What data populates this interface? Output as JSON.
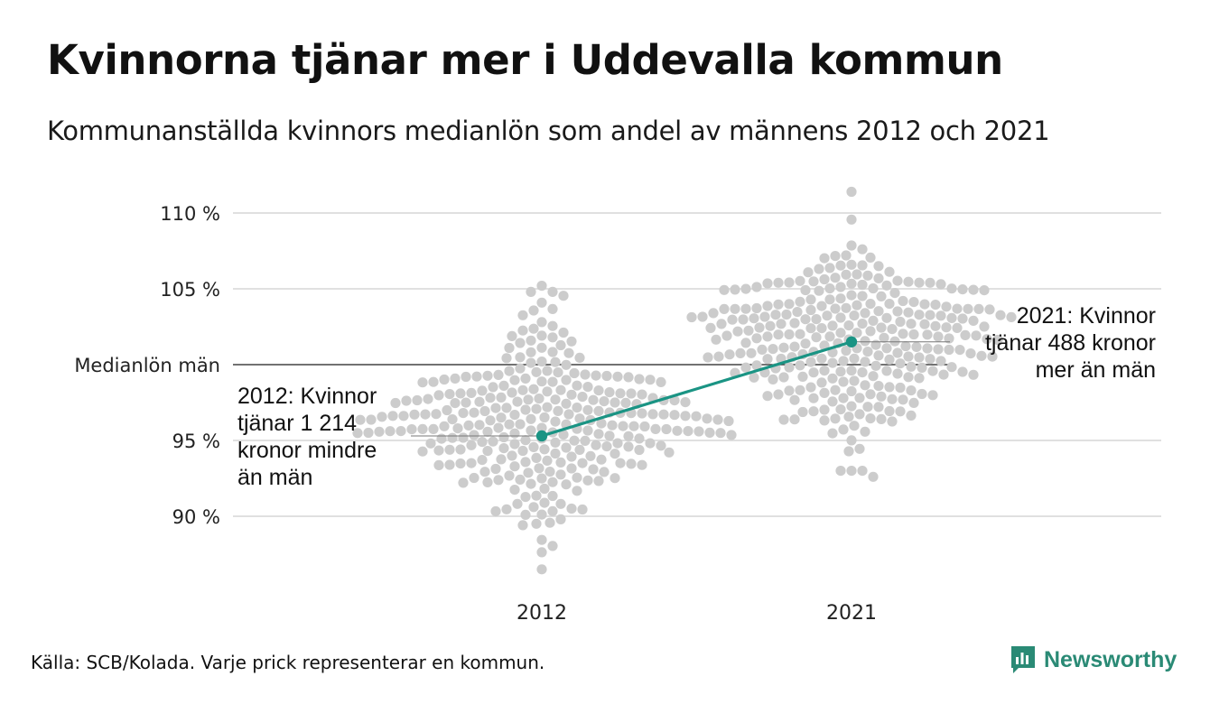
{
  "header": {
    "title": "Kvinnorna tjänar mer i Uddevalla kommun",
    "subtitle": "Kommunanställda kvinnors medianlön som andel av männens 2012 och 2021"
  },
  "footer": {
    "source": "Källa: SCB/Kolada. Varje prick representerar en kommun.",
    "brand": "Newsworthy",
    "brand_icon": "newsworthy-logo-icon"
  },
  "colors": {
    "dots": "#cccccc",
    "highlight": "#1a9484",
    "grid": "#e0e0e0",
    "reference_line": "#444444",
    "brand": "#2a8a75"
  },
  "chart_data": {
    "type": "scatter",
    "categories": [
      "2012",
      "2021"
    ],
    "ylim": [
      86,
      111
    ],
    "yticks": [
      {
        "value": 90,
        "label": "90 %"
      },
      {
        "value": 95,
        "label": "95 %"
      },
      {
        "value": 105,
        "label": "105 %"
      },
      {
        "value": 110,
        "label": "110 %"
      }
    ],
    "reference_line": {
      "value": 100,
      "label": "Medianlön män"
    },
    "distribution": [
      {
        "category": "2012",
        "min": 86.5,
        "max": 105.2,
        "center": 96.5,
        "spread": 3.2,
        "count": 290
      },
      {
        "category": "2021",
        "min": 92.6,
        "max": 111.4,
        "center": 101.4,
        "spread": 3.0,
        "count": 290
      }
    ],
    "highlight": {
      "name": "Uddevalla",
      "points": [
        {
          "x": "2012",
          "y": 95.3,
          "label": "2012: Kvinnor tjänar 1 214 kronor mindre än män"
        },
        {
          "x": "2021",
          "y": 101.5,
          "label": "2021: Kvinnor tjänar 488 kronor mer än män"
        }
      ]
    },
    "grid": true
  }
}
